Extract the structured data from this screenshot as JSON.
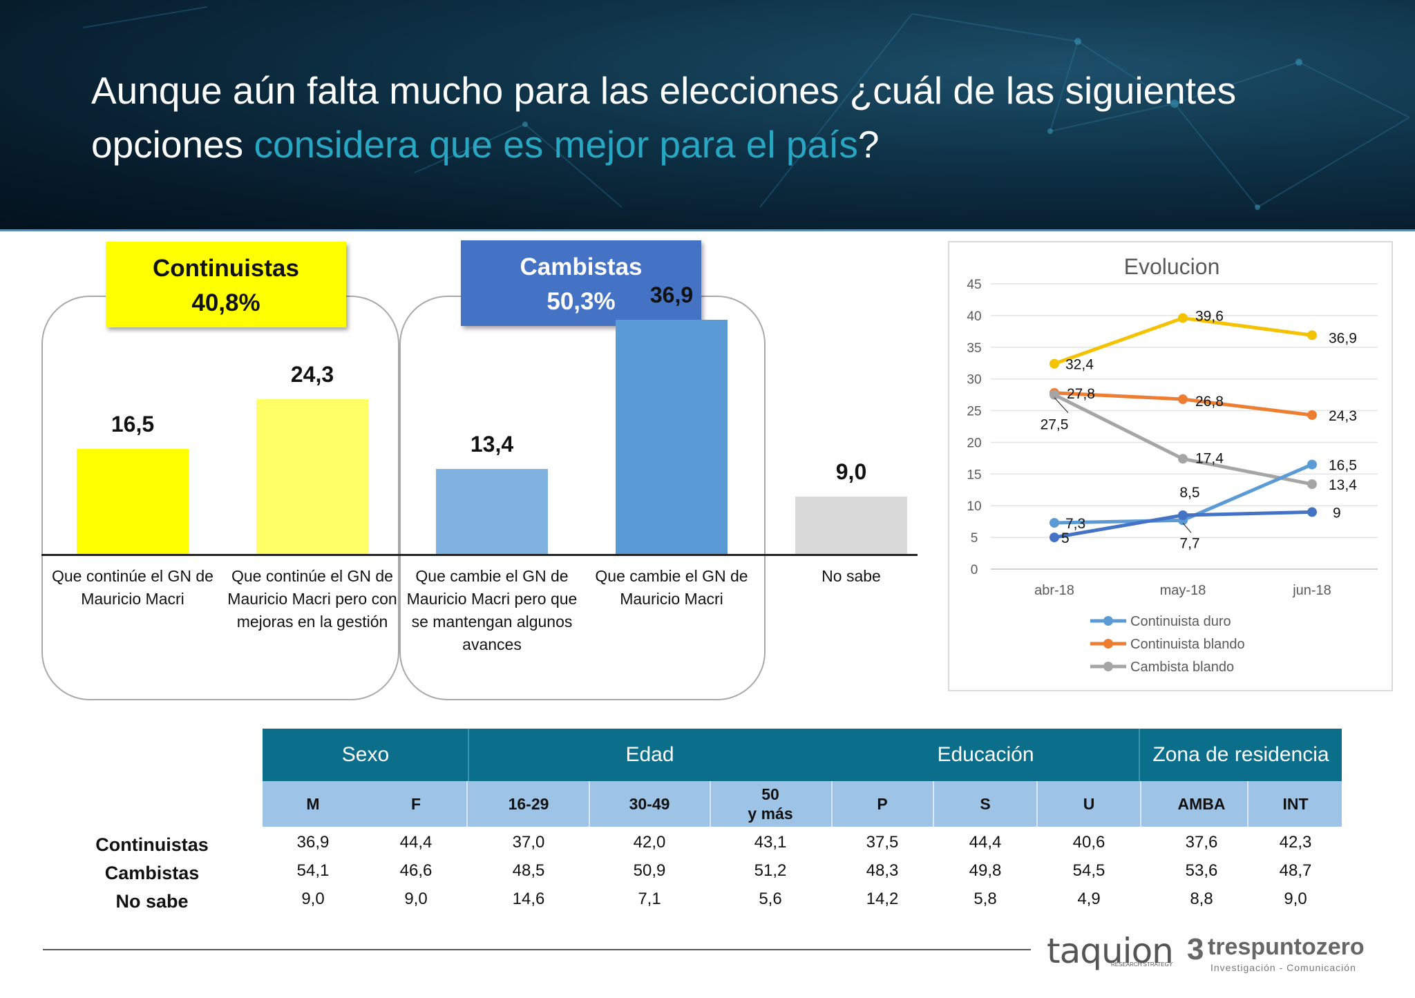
{
  "header": {
    "title_part1": "Aunque aún falta mucho para las elecciones ¿cuál de las siguientes opciones ",
    "title_accent": "considera que es mejor para el país",
    "title_part3": "?"
  },
  "groups": {
    "continuistas": {
      "label": "Continuistas",
      "value": "40,8%",
      "color": "#ffff00"
    },
    "cambistas": {
      "label": "Cambistas",
      "value": "50,3%",
      "color": "#4472c4"
    }
  },
  "chart_data": [
    {
      "type": "bar",
      "categories": [
        "Que continúe el GN de Mauricio Macri",
        "Que continúe el GN de Mauricio Macri pero con mejoras en la gestión",
        "Que cambie el GN de Mauricio Macri pero que se mantengan algunos avances",
        "Que cambie el GN de Mauricio Macri",
        "No sabe"
      ],
      "values": [
        16.5,
        24.3,
        13.4,
        36.9,
        9.0
      ],
      "value_labels": [
        "16,5",
        "24,3",
        "13,4",
        "36,9",
        "9,0"
      ],
      "colors": [
        "#ffff00",
        "#ffff66",
        "#7fb2e0",
        "#5b9bd5",
        "#d9d9d9"
      ],
      "ylim": [
        0,
        40
      ]
    },
    {
      "type": "line",
      "title": "Evolucion",
      "x": [
        "abr-18",
        "may-18",
        "jun-18"
      ],
      "ylim": [
        0,
        45
      ],
      "yticks": [
        0,
        5,
        10,
        15,
        20,
        25,
        30,
        35,
        40,
        45
      ],
      "grid": true,
      "legend_position": "bottom",
      "series": [
        {
          "name": "",
          "color": "#f5c200",
          "values": [
            32.4,
            39.6,
            36.9
          ],
          "labels": [
            "32,4",
            "39,6",
            "36,9"
          ]
        },
        {
          "name": "Continuista blando",
          "color": "#ed7d31",
          "values": [
            27.8,
            26.8,
            24.3
          ],
          "labels": [
            "27,8",
            "26,8",
            "24,3"
          ]
        },
        {
          "name": "Cambista blando",
          "color": "#a5a5a5",
          "values": [
            27.5,
            17.4,
            13.4
          ],
          "labels": [
            "27,5",
            "17,4",
            "13,4"
          ]
        },
        {
          "name": "Continuista duro",
          "color": "#5b9bd5",
          "values": [
            7.3,
            7.7,
            16.5
          ],
          "labels": [
            "7,3",
            "7,7",
            "16,5"
          ]
        },
        {
          "name": "",
          "color": "#4472c4",
          "values": [
            5,
            8.5,
            9
          ],
          "labels": [
            "5",
            "8,5",
            "9"
          ]
        }
      ]
    }
  ],
  "table": {
    "groups": [
      "Sexo",
      "Edad",
      "Educación",
      "Zona de residencia"
    ],
    "columns": [
      "M",
      "F",
      "16-29",
      "30-49",
      "50\ny más",
      "P",
      "S",
      "U",
      "AMBA",
      "INT"
    ],
    "rows": [
      {
        "label": "Continuistas",
        "values": [
          "36,9",
          "44,4",
          "37,0",
          "42,0",
          "43,1",
          "37,5",
          "44,4",
          "40,6",
          "37,6",
          "42,3"
        ]
      },
      {
        "label": "Cambistas",
        "values": [
          "54,1",
          "46,6",
          "48,5",
          "50,9",
          "51,2",
          "48,3",
          "49,8",
          "54,5",
          "53,6",
          "48,7"
        ]
      },
      {
        "label": "No sabe",
        "values": [
          "9,0",
          "9,0",
          "14,6",
          "7,1",
          "5,6",
          "14,2",
          "5,8",
          "4,9",
          "8,8",
          "9,0"
        ]
      }
    ]
  },
  "footer": {
    "logo1": "taquion",
    "logo1_sub": "RESEARCH STRATEGY",
    "logo2_mark": "3",
    "logo2": "trespuntozero",
    "logo2_sub": "Investigación - Comunicación"
  }
}
